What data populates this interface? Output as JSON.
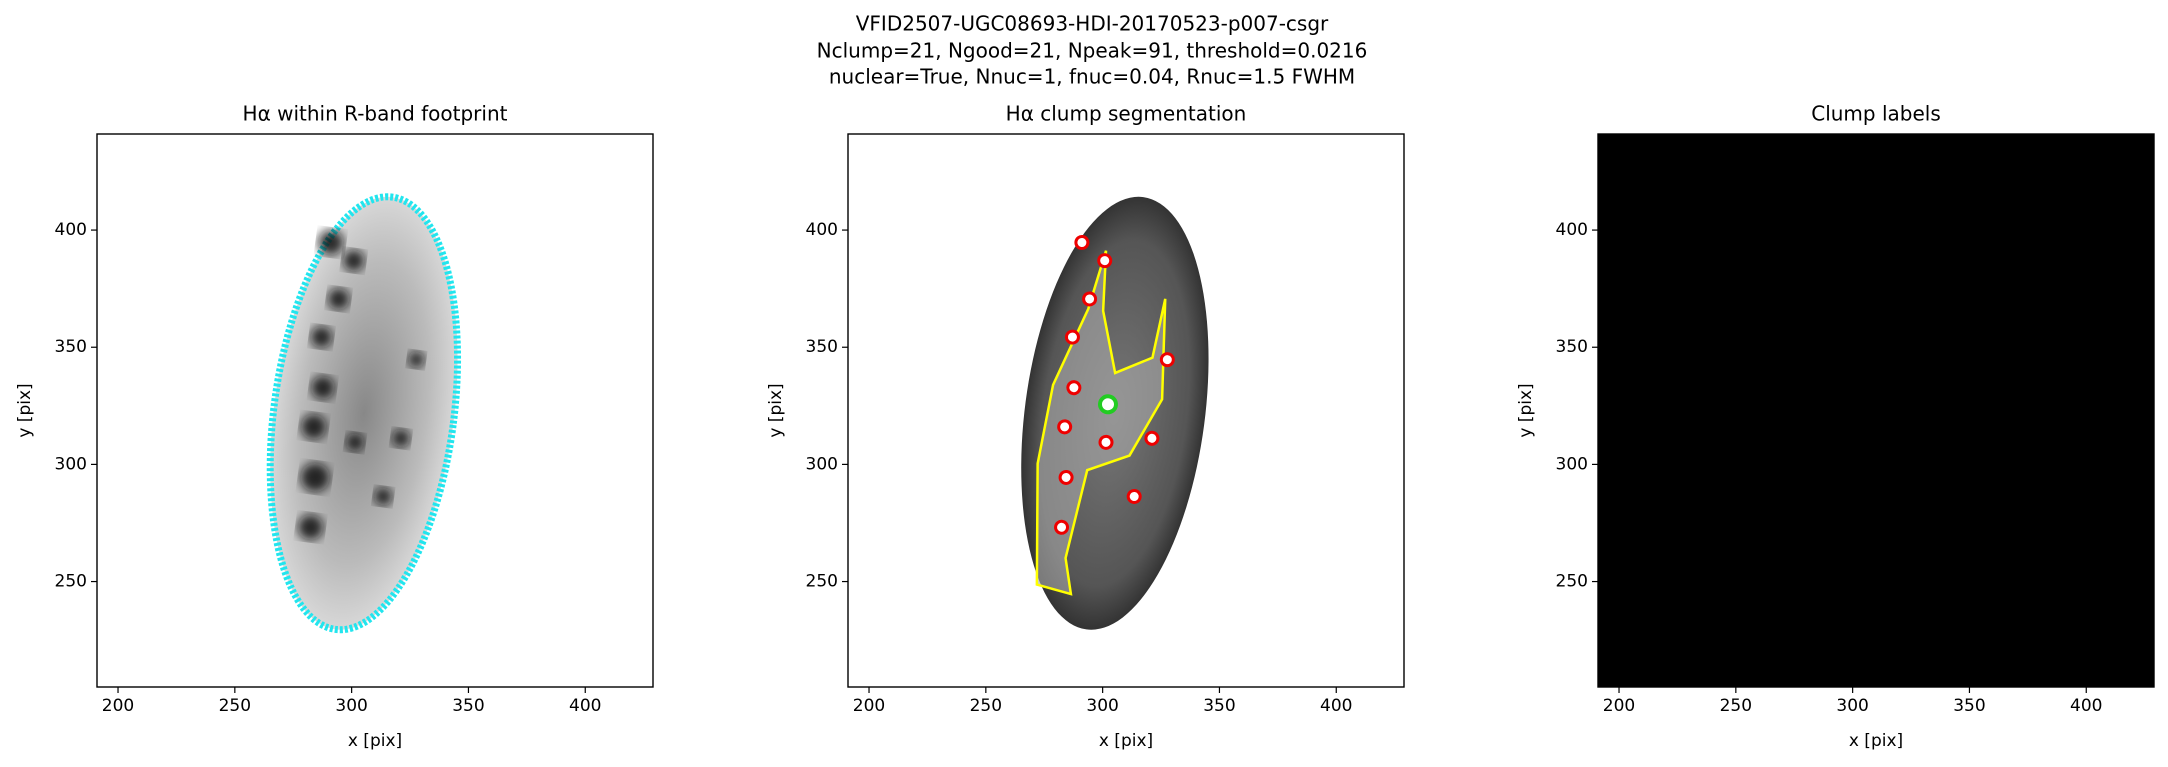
{
  "suptitle": [
    "VFID2507-UGC08693-HDI-20170523-p007-csgr",
    "Nclump=21, Ngood=21, Npeak=91, threshold=0.0216",
    "nuclear=True, Nnuc=1, fnuc=0.04, Rnuc=1.5 FWHM"
  ],
  "chart_data": [
    {
      "type": "image",
      "style": "footprint",
      "title": "Hα within R-band footprint",
      "xlabel": "x [pix]",
      "ylabel": "y [pix]",
      "xlim": [
        191,
        429
      ],
      "ylim": [
        205,
        441
      ],
      "xticks": [
        200,
        250,
        300,
        350,
        400
      ],
      "yticks": [
        250,
        300,
        350,
        400
      ]
    },
    {
      "type": "image",
      "style": "segmentation",
      "title": "Hα clump segmentation",
      "xlabel": "x [pix]",
      "ylabel": "y [pix]",
      "xlim": [
        191,
        429
      ],
      "ylim": [
        205,
        441
      ],
      "xticks": [
        200,
        250,
        300,
        350,
        400
      ],
      "yticks": [
        250,
        300,
        350,
        400
      ]
    },
    {
      "type": "image",
      "style": "labels",
      "title": "Clump labels",
      "xlabel": "x [pix]",
      "ylabel": "y [pix]",
      "xlim": [
        191,
        429
      ],
      "ylim": [
        205,
        441
      ],
      "xticks": [
        200,
        250,
        300,
        350,
        400
      ],
      "yticks": [
        250,
        300,
        350,
        400
      ]
    }
  ]
}
